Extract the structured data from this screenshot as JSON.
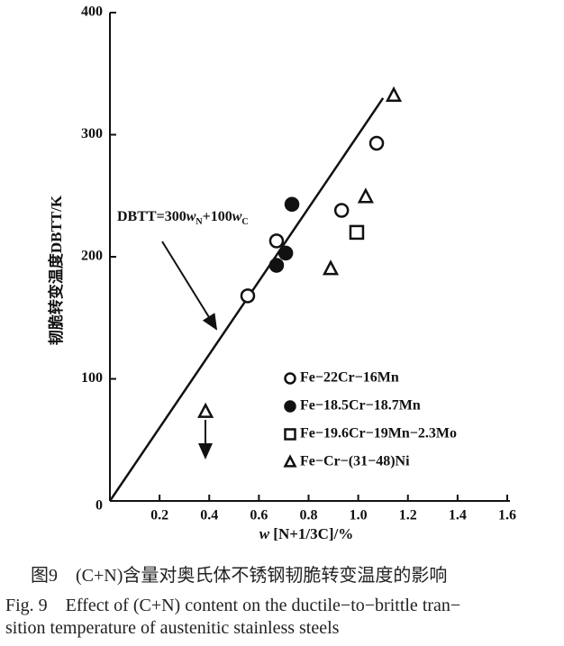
{
  "chart_data": {
    "type": "scatter",
    "y_label": "韧脆转变温度DBTT/K",
    "x_label": [
      "w",
      "[N+1/3C]/%"
    ],
    "annotation": [
      "DBTT=300",
      "w",
      "N",
      "+100",
      "w",
      "C"
    ],
    "xlim": [
      0,
      1.6
    ],
    "ylim": [
      0,
      400
    ],
    "xticks": [
      0.2,
      0.4,
      0.6,
      0.8,
      {
        "value": 1,
        "label": "1.0"
      },
      1.2,
      1.4,
      1.6
    ],
    "yticks": [
      0,
      100,
      200,
      300,
      400
    ],
    "fit_line": {
      "x": [
        0,
        1.1
      ],
      "y": [
        0,
        330
      ]
    },
    "series": [
      {
        "name": "Fe−22Cr−16Mn",
        "marker": "circle-open",
        "color": "#111",
        "x": [
          0.555,
          0.671,
          0.933,
          1.074
        ],
        "values": [
          168,
          213,
          238,
          293
        ]
      },
      {
        "name": "Fe−18.5Cr−18.7Mn",
        "marker": "circle-filled",
        "color": "#111",
        "x": [
          0.733,
          0.708,
          0.671
        ],
        "values": [
          243,
          203,
          193
        ]
      },
      {
        "name": "Fe−19.6Cr−19Mn−2.3Mo",
        "marker": "square-open",
        "color": "#111",
        "x": [
          0.994
        ],
        "values": [
          220
        ]
      },
      {
        "name": "Fe−Cr−(31−48)Ni",
        "marker": "triangle-open",
        "color": "#111",
        "x": [
          1.143,
          1.03,
          0.889,
          0.385
        ],
        "values": [
          332,
          249,
          190,
          73
        ]
      }
    ]
  },
  "caption": {
    "cn": "图9　(C+N)含量对奥氏体不锈钢韧脆转变温度的影响",
    "en": [
      "Fig. 9　Effect of (C+N) content on the ductile−to−brittle tran−",
      "sition temperature of austenitic stainless steels"
    ]
  }
}
